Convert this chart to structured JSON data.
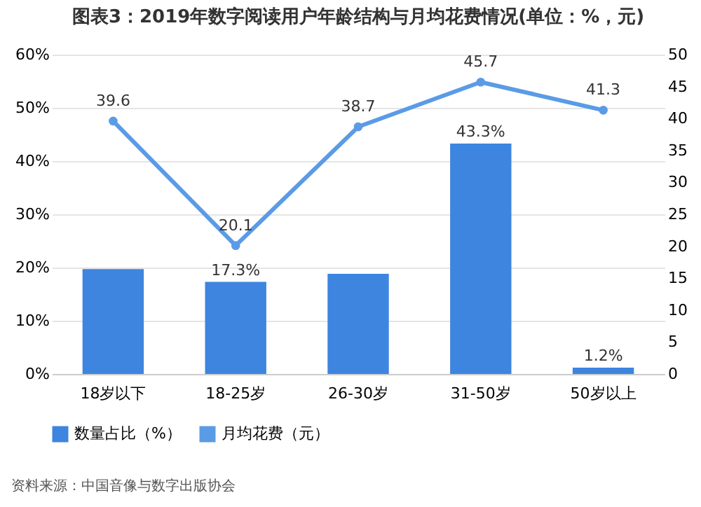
{
  "chart_data": {
    "type": "bar",
    "title": "图表3：2019年数字阅读用户年龄结构与月均花费情况(单位：%，元)",
    "categories": [
      "18岁以下",
      "18-25岁",
      "26-30岁",
      "31-50岁",
      "50岁以上"
    ],
    "series": [
      {
        "name": "数量占比（%）",
        "color": "#3d85df",
        "values": [
          19.7,
          17.3,
          18.8,
          43.3,
          1.2
        ],
        "value_labels": [
          null,
          "17.3%",
          null,
          "43.3%",
          "1.2%"
        ]
      },
      {
        "name": "月均花费（元）",
        "type": "line",
        "axis": "y2",
        "color": "#5b9be6",
        "values": [
          39.6,
          20.1,
          38.7,
          45.7,
          41.3
        ],
        "value_labels": [
          "39.6",
          "20.1",
          "38.7",
          "45.7",
          "41.3"
        ]
      }
    ],
    "ylim": [
      0,
      60
    ],
    "yticks": [
      {
        "value": 0,
        "label": "0%"
      },
      {
        "value": 10,
        "label": "10%"
      },
      {
        "value": 20,
        "label": "20%"
      },
      {
        "value": 30,
        "label": "30%"
      },
      {
        "value": 40,
        "label": "40%"
      },
      {
        "value": 50,
        "label": "50%"
      },
      {
        "value": 60,
        "label": "60%"
      }
    ],
    "y2lim": [
      0,
      50
    ],
    "y2ticks": [
      0,
      5,
      10,
      15,
      20,
      25,
      30,
      35,
      40,
      45,
      50
    ],
    "grid": "y",
    "legend": "bottom",
    "marker": "circle",
    "annotations": [
      "资料来源：中国音像与数字出版协会"
    ]
  }
}
